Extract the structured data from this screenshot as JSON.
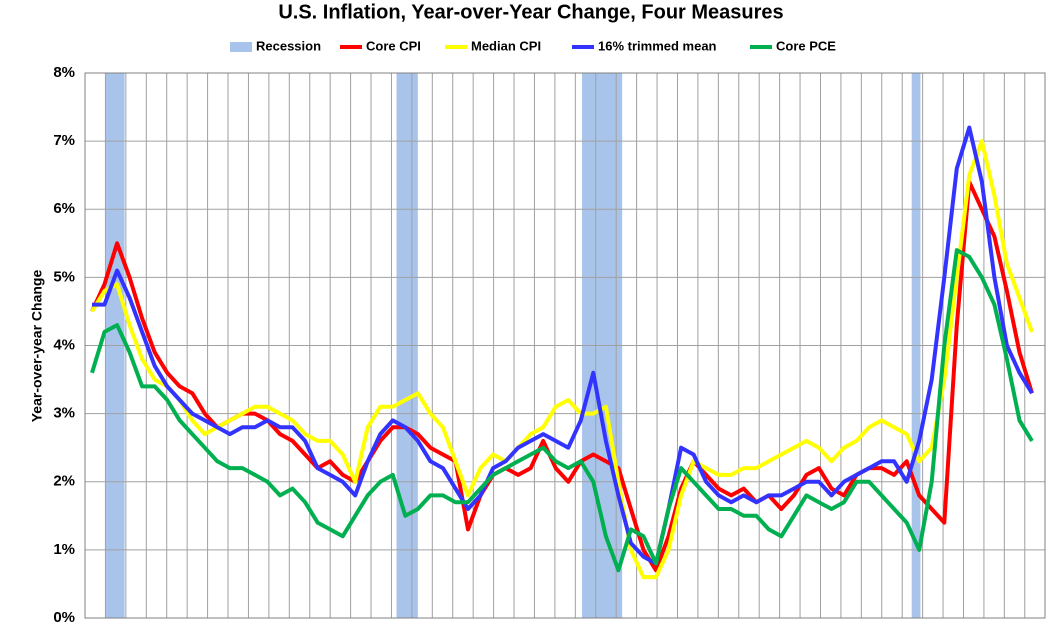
{
  "chart_data": {
    "type": "line",
    "title": "U.S. Inflation, Year-over-Year Change, Four Measures",
    "y_label": "Year-over-year Change",
    "ylim": [
      0,
      8
    ],
    "yticks": [
      {
        "value": 0,
        "label": "0%"
      },
      {
        "value": 1,
        "label": "1%"
      },
      {
        "value": 2,
        "label": "2%"
      },
      {
        "value": 3,
        "label": "3%"
      },
      {
        "value": 4,
        "label": "4%"
      },
      {
        "value": 5,
        "label": "5%"
      },
      {
        "value": 6,
        "label": "6%"
      },
      {
        "value": 7,
        "label": "7%"
      },
      {
        "value": 8,
        "label": "8%"
      }
    ],
    "grid": true,
    "recession": {
      "name": "Recession",
      "color": "#a9c4eb",
      "ranges": [
        [
          1.1,
          2.6
        ],
        [
          24.3,
          26.0
        ],
        [
          39.1,
          42.3
        ],
        [
          65.4,
          66.1
        ]
      ]
    },
    "series": [
      {
        "name": "Core CPI",
        "color": "#ff0000",
        "values": [
          4.5,
          4.9,
          5.5,
          5.0,
          4.4,
          3.9,
          3.6,
          3.4,
          3.3,
          3.0,
          2.8,
          2.9,
          3.0,
          3.0,
          2.9,
          2.7,
          2.6,
          2.4,
          2.2,
          2.3,
          2.1,
          2.0,
          2.3,
          2.6,
          2.8,
          2.8,
          2.7,
          2.5,
          2.4,
          2.3,
          1.3,
          1.8,
          2.1,
          2.2,
          2.1,
          2.2,
          2.6,
          2.2,
          2.0,
          2.3,
          2.4,
          2.3,
          2.2,
          1.6,
          1.0,
          0.7,
          1.2,
          1.9,
          2.3,
          2.1,
          1.9,
          1.8,
          1.9,
          1.7,
          1.8,
          1.6,
          1.8,
          2.1,
          2.2,
          1.9,
          1.8,
          2.1,
          2.2,
          2.2,
          2.1,
          2.3,
          1.8,
          1.6,
          1.4,
          4.3,
          6.4,
          6.0,
          5.6,
          4.8,
          3.9,
          3.3
        ]
      },
      {
        "name": "Median CPI",
        "color": "#ffff00",
        "values": [
          4.5,
          4.8,
          4.9,
          4.3,
          3.8,
          3.5,
          3.4,
          3.2,
          2.9,
          2.7,
          2.8,
          2.9,
          3.0,
          3.1,
          3.1,
          3.0,
          2.9,
          2.7,
          2.6,
          2.6,
          2.4,
          2.0,
          2.8,
          3.1,
          3.1,
          3.2,
          3.3,
          3.0,
          2.8,
          2.3,
          1.8,
          2.2,
          2.4,
          2.3,
          2.5,
          2.7,
          2.8,
          3.1,
          3.2,
          3.0,
          3.0,
          3.1,
          2.0,
          1.0,
          0.6,
          0.6,
          1.0,
          1.8,
          2.3,
          2.2,
          2.1,
          2.1,
          2.2,
          2.2,
          2.3,
          2.4,
          2.5,
          2.6,
          2.5,
          2.3,
          2.5,
          2.6,
          2.8,
          2.9,
          2.8,
          2.7,
          2.3,
          2.5,
          3.5,
          5.0,
          6.5,
          7.0,
          6.2,
          5.2,
          4.7,
          4.2
        ]
      },
      {
        "name": "16% trimmed mean",
        "color": "#3333ff",
        "values": [
          4.6,
          4.6,
          5.1,
          4.7,
          4.2,
          3.7,
          3.4,
          3.2,
          3.0,
          2.9,
          2.8,
          2.7,
          2.8,
          2.8,
          2.9,
          2.8,
          2.8,
          2.6,
          2.2,
          2.1,
          2.0,
          1.8,
          2.3,
          2.7,
          2.9,
          2.8,
          2.6,
          2.3,
          2.2,
          1.9,
          1.6,
          1.8,
          2.2,
          2.3,
          2.5,
          2.6,
          2.7,
          2.6,
          2.5,
          2.9,
          3.6,
          2.6,
          1.8,
          1.1,
          0.9,
          0.8,
          1.6,
          2.5,
          2.4,
          2.0,
          1.8,
          1.7,
          1.8,
          1.7,
          1.8,
          1.8,
          1.9,
          2.0,
          2.0,
          1.8,
          2.0,
          2.1,
          2.2,
          2.3,
          2.3,
          2.0,
          2.6,
          3.5,
          5.0,
          6.6,
          7.2,
          6.4,
          5.0,
          4.0,
          3.6,
          3.3
        ]
      },
      {
        "name": "Core PCE",
        "color": "#00b050",
        "values": [
          3.6,
          4.2,
          4.3,
          3.9,
          3.4,
          3.4,
          3.2,
          2.9,
          2.7,
          2.5,
          2.3,
          2.2,
          2.2,
          2.1,
          2.0,
          1.8,
          1.9,
          1.7,
          1.4,
          1.3,
          1.2,
          1.5,
          1.8,
          2.0,
          2.1,
          1.5,
          1.6,
          1.8,
          1.8,
          1.7,
          1.7,
          1.9,
          2.1,
          2.2,
          2.3,
          2.4,
          2.5,
          2.3,
          2.2,
          2.3,
          2.0,
          1.2,
          0.7,
          1.3,
          1.2,
          0.8,
          1.6,
          2.2,
          2.0,
          1.8,
          1.6,
          1.6,
          1.5,
          1.5,
          1.3,
          1.2,
          1.5,
          1.8,
          1.7,
          1.6,
          1.7,
          2.0,
          2.0,
          1.8,
          1.6,
          1.4,
          1.0,
          2.0,
          4.0,
          5.4,
          5.3,
          5.0,
          4.6,
          3.8,
          2.9,
          2.6
        ]
      }
    ]
  }
}
